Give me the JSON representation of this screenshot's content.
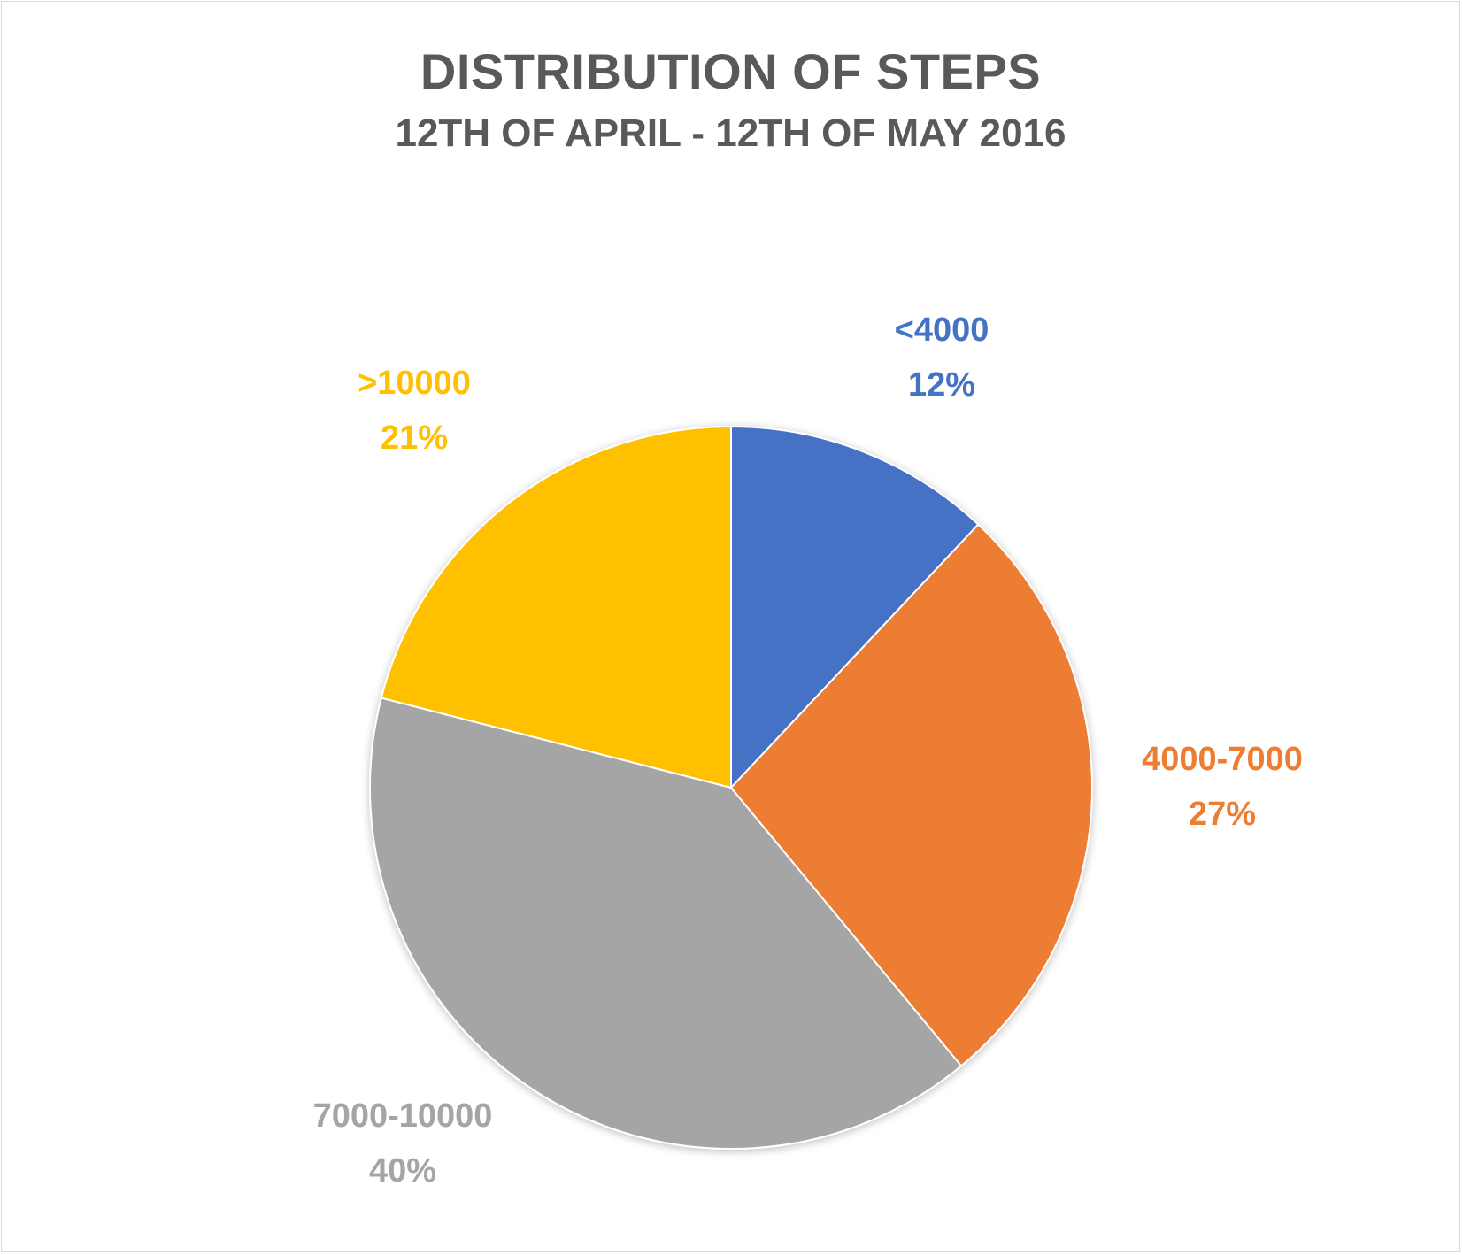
{
  "chart_data": {
    "type": "pie",
    "title": "DISTRIBUTION OF STEPS",
    "subtitle": "12TH OF APRIL - 12TH OF MAY 2016",
    "categories": [
      "<4000",
      "4000-7000",
      "7000-10000",
      ">10000"
    ],
    "values": [
      12,
      27,
      40,
      21
    ],
    "value_labels": [
      "12%",
      "27%",
      "40%",
      "21%"
    ],
    "colors": [
      "#4472C4",
      "#ED7D31",
      "#A5A5A5",
      "#FFC000"
    ],
    "start_angle": "12 o'clock",
    "direction": "clockwise",
    "legend": "none (data labels outside slices)"
  }
}
